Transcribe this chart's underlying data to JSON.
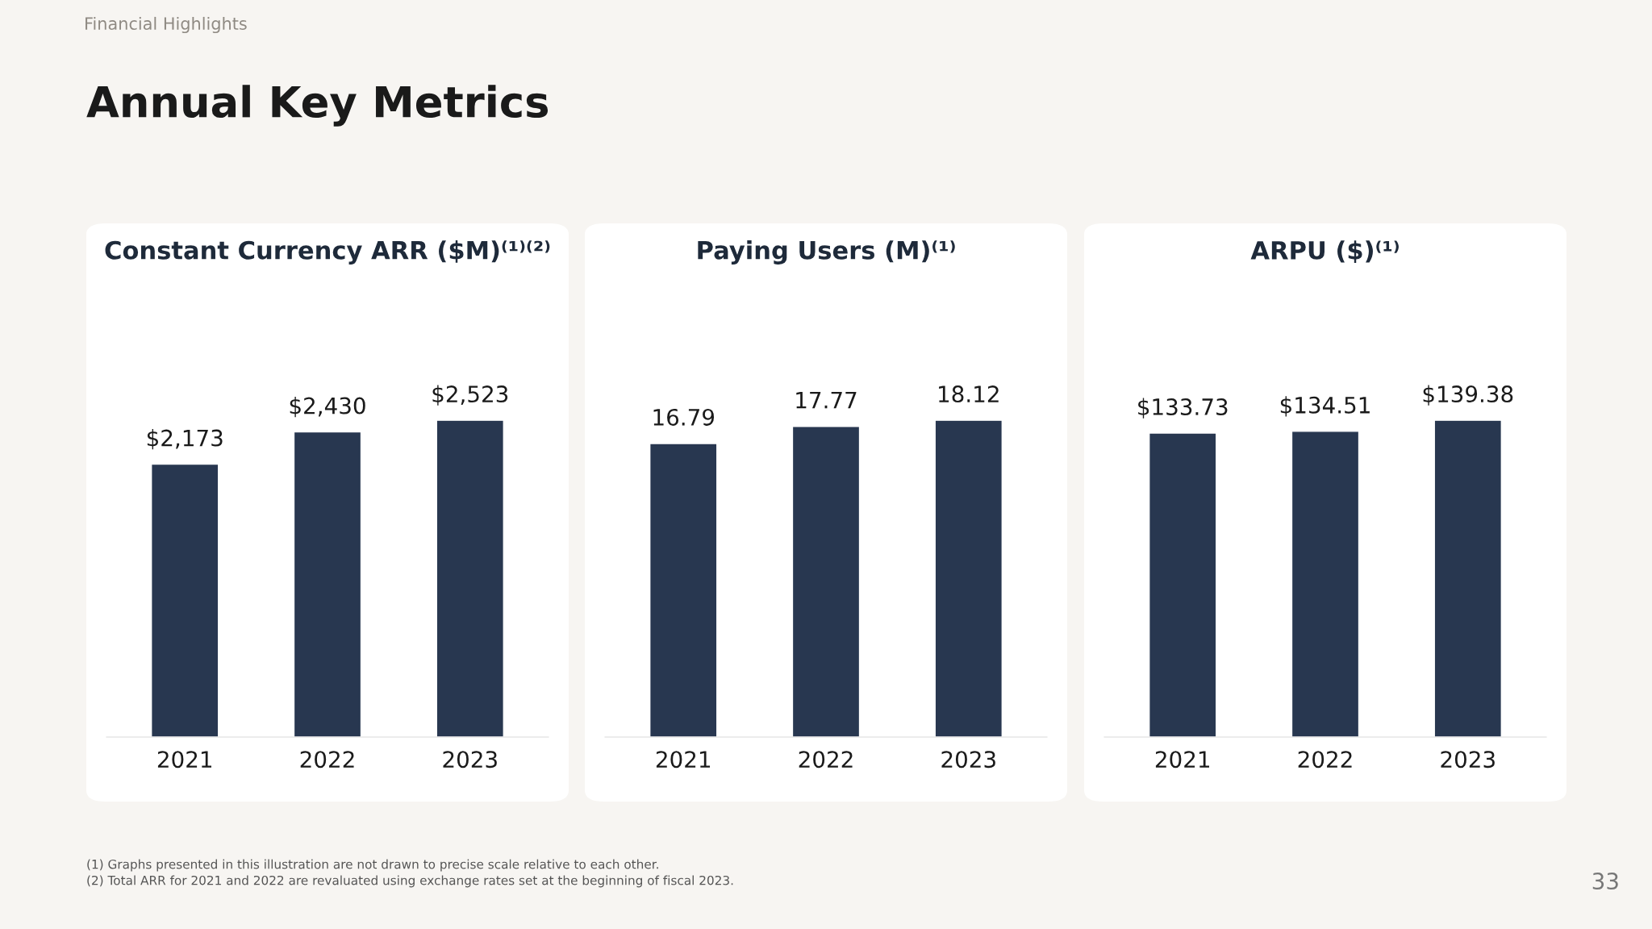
{
  "chart_data": [
    {
      "type": "bar",
      "title": "Constant Currency ARR ($M)⁽¹⁾⁽²⁾",
      "categories": [
        "2021",
        "2022",
        "2023"
      ],
      "values": [
        2173,
        2430,
        2523
      ],
      "value_labels": [
        "$2,173",
        "$2,430",
        "$2,523"
      ],
      "color": "#283750",
      "grid": false,
      "legend": false,
      "annotations": [
        "Financial Highlights",
        "Annual Key Metrics",
        "(1) Graphs presented in this illustration are not drawn to precise scale relative to each other.",
        "(2) Total ARR for 2021 and 2022 are revaluated using exchange rates set at the beginning of fiscal 2023.",
        "33"
      ]
    },
    {
      "type": "bar",
      "title": "Paying Users (M)⁽¹⁾",
      "categories": [
        "2021",
        "2022",
        "2023"
      ],
      "values": [
        16.79,
        17.77,
        18.12
      ],
      "data_labels": true,
      "color": "#283750",
      "grid": false,
      "legend": false
    },
    {
      "type": "bar",
      "title": "ARPU ($)⁽¹⁾",
      "categories": [
        "2021",
        "2022",
        "2023"
      ],
      "values": [
        133.73,
        134.51,
        139.38
      ],
      "value_labels": [
        "$133.73",
        "$134.51",
        "$139.38"
      ],
      "color": "#283750",
      "grid": false,
      "legend": false
    }
  ]
}
